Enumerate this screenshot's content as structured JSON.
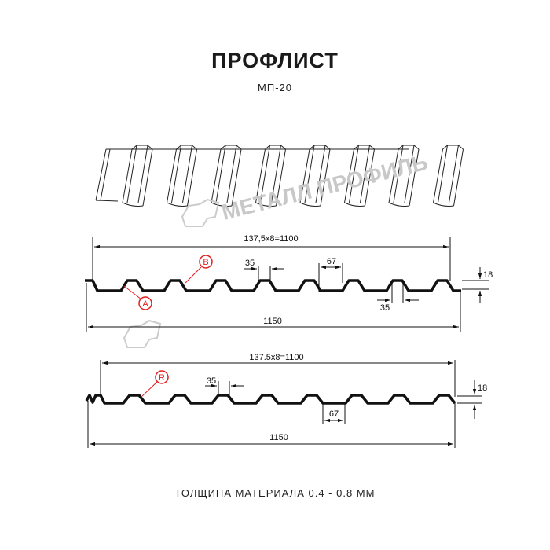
{
  "title": "ПРОФЛИСТ",
  "subtitle": "МП-20",
  "watermark": "МЕТАЛЛ ПРОФИЛЬ",
  "footer": "ТОЛЩИНА МАТЕРИАЛА 0.4 - 0.8 ММ",
  "profile_top": {
    "dim_overall_pitch": "137,5x8=1100",
    "dim_total": "1150",
    "dim_top_width": "35",
    "dim_rib": "67",
    "dim_bottom_width": "35",
    "dim_height": "18",
    "marker_a": "A",
    "marker_b": "B"
  },
  "profile_bottom": {
    "dim_overall_pitch": "137.5x8=1100",
    "dim_total": "1150",
    "dim_top_width": "35",
    "dim_rib": "67",
    "dim_height": "18",
    "marker_r": "R"
  },
  "colors": {
    "line": "#111111",
    "marker": "#e02020",
    "watermark": "#c8c8c8"
  }
}
